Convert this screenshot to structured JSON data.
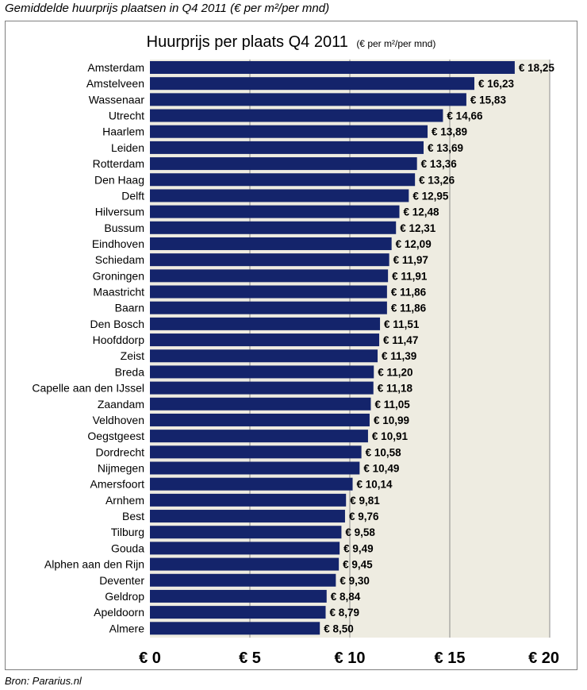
{
  "caption": "Gemiddelde huurprijs plaatsen in Q4 2011 (€ per m²/per mnd)",
  "source": "Bron: Pararius.nl",
  "colors": {
    "bar": "#14246b",
    "plot_bg": "#eeece1",
    "grid": "#8c8c8c"
  },
  "chart_data": {
    "type": "bar",
    "orientation": "horizontal",
    "title": "Huurprijs per plaats Q4 2011",
    "title_unit": "(€ per m²/per mnd)",
    "xlabel": "",
    "ylabel": "",
    "xlim": [
      0,
      20
    ],
    "grid": true,
    "legend": "none",
    "x_ticks": [
      0,
      5,
      10,
      15,
      20
    ],
    "x_tick_labels": [
      "€ 0",
      "€ 5",
      "€ 10",
      "€ 15",
      "€ 20"
    ],
    "categories": [
      "Amsterdam",
      "Amstelveen",
      "Wassenaar",
      "Utrecht",
      "Haarlem",
      "Leiden",
      "Rotterdam",
      "Den Haag",
      "Delft",
      "Hilversum",
      "Bussum",
      "Eindhoven",
      "Schiedam",
      "Groningen",
      "Maastricht",
      "Baarn",
      "Den Bosch",
      "Hoofddorp",
      "Zeist",
      "Breda",
      "Capelle aan den IJssel",
      "Zaandam",
      "Veldhoven",
      "Oegstgeest",
      "Dordrecht",
      "Nijmegen",
      "Amersfoort",
      "Arnhem",
      "Best",
      "Tilburg",
      "Gouda",
      "Alphen aan den Rijn",
      "Deventer",
      "Geldrop",
      "Apeldoorn",
      "Almere"
    ],
    "values": [
      18.25,
      16.23,
      15.83,
      14.66,
      13.89,
      13.69,
      13.36,
      13.26,
      12.95,
      12.48,
      12.31,
      12.09,
      11.97,
      11.91,
      11.86,
      11.86,
      11.51,
      11.47,
      11.39,
      11.2,
      11.18,
      11.05,
      10.99,
      10.91,
      10.58,
      10.49,
      10.14,
      9.81,
      9.76,
      9.58,
      9.49,
      9.45,
      9.3,
      8.84,
      8.79,
      8.5
    ],
    "value_labels": [
      "€ 18,25",
      "€ 16,23",
      "€ 15,83",
      "€ 14,66",
      "€ 13,89",
      "€ 13,69",
      "€ 13,36",
      "€ 13,26",
      "€ 12,95",
      "€ 12,48",
      "€ 12,31",
      "€ 12,09",
      "€ 11,97",
      "€ 11,91",
      "€ 11,86",
      "€ 11,86",
      "€ 11,51",
      "€ 11,47",
      "€ 11,39",
      "€ 11,20",
      "€ 11,18",
      "€ 11,05",
      "€ 10,99",
      "€ 10,91",
      "€ 10,58",
      "€ 10,49",
      "€ 10,14",
      "€ 9,81",
      "€ 9,76",
      "€ 9,58",
      "€ 9,49",
      "€ 9,45",
      "€ 9,30",
      "€ 8,84",
      "€ 8,79",
      "€ 8,50"
    ]
  }
}
